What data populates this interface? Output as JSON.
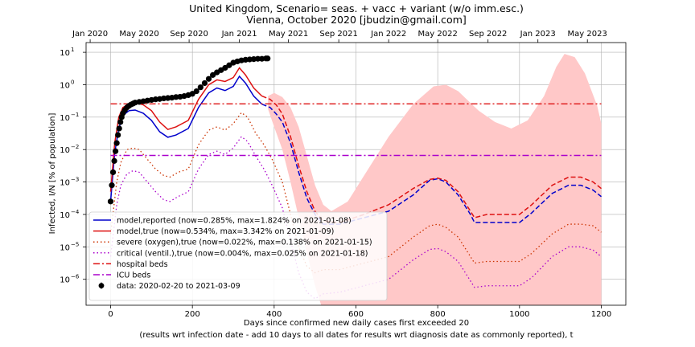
{
  "chart_data": {
    "type": "line",
    "title_line1": "United Kingdom, Scenario= seas. + vacc + variant (w/o imm.esc.)",
    "title_line2": "Vienna, October 2020 [jbudzin@gmail.com]",
    "xlabel": "Days since confirmed new daily cases first exceeded 20",
    "xlabel2": "(results wrt infection date - add 10 days to all dates for results wrt diagnosis date as commonly reported), t",
    "ylabel": "Infected, I/N [% of population]",
    "xlim": [
      -60,
      1260
    ],
    "ylim_log10": [
      -6.8,
      1.3
    ],
    "x_ticks": [
      0,
      200,
      400,
      600,
      800,
      1000,
      1200
    ],
    "x_tick_labels": [
      "0",
      "200",
      "400",
      "600",
      "800",
      "1000",
      "1200"
    ],
    "y_ticks_log10": [
      -6,
      -5,
      -4,
      -3,
      -2,
      -1,
      0,
      1
    ],
    "top_axis": {
      "tick_days": [
        -50,
        70,
        192,
        315,
        435,
        558,
        680,
        800,
        923,
        1045,
        1166
      ],
      "tick_labels": [
        "Jan 2020",
        "May 2020",
        "Sep 2020",
        "Jan 2021",
        "May 2021",
        "Sep 2021",
        "Jan 2022",
        "May 2022",
        "Sep 2022",
        "Jan 2023",
        "May 2023"
      ]
    },
    "grid": true,
    "legend_position": "lower-left",
    "series": [
      {
        "name": "model,reported (now=0.285%, max=1.824% on 2021-01-08)",
        "color": "#0000cc",
        "dash": "solid",
        "points": [
          [
            0,
            -3.6
          ],
          [
            10,
            -2.1
          ],
          [
            20,
            -1.35
          ],
          [
            30,
            -0.95
          ],
          [
            45,
            -0.8
          ],
          [
            60,
            -0.78
          ],
          [
            80,
            -0.88
          ],
          [
            100,
            -1.1
          ],
          [
            120,
            -1.45
          ],
          [
            140,
            -1.62
          ],
          [
            160,
            -1.55
          ],
          [
            190,
            -1.35
          ],
          [
            215,
            -0.7
          ],
          [
            240,
            -0.25
          ],
          [
            260,
            -0.1
          ],
          [
            280,
            -0.18
          ],
          [
            300,
            -0.05
          ],
          [
            315,
            0.26
          ],
          [
            330,
            0.05
          ],
          [
            350,
            -0.35
          ],
          [
            370,
            -0.6
          ],
          [
            390,
            -0.7
          ],
          [
            405,
            -0.9
          ],
          [
            420,
            -1.15
          ],
          [
            440,
            -1.8
          ],
          [
            460,
            -2.7
          ],
          [
            480,
            -3.5
          ],
          [
            500,
            -4.0
          ],
          [
            520,
            -4.3
          ],
          [
            560,
            -4.3
          ],
          [
            620,
            -4.1
          ],
          [
            680,
            -3.9
          ],
          [
            740,
            -3.4
          ],
          [
            780,
            -2.95
          ],
          [
            800,
            -2.9
          ],
          [
            820,
            -3.0
          ],
          [
            850,
            -3.4
          ],
          [
            880,
            -4.0
          ],
          [
            890,
            -4.25
          ],
          [
            920,
            -4.25
          ],
          [
            1000,
            -4.25
          ],
          [
            1030,
            -3.95
          ],
          [
            1080,
            -3.35
          ],
          [
            1120,
            -3.1
          ],
          [
            1150,
            -3.1
          ],
          [
            1180,
            -3.25
          ],
          [
            1200,
            -3.45
          ]
        ]
      },
      {
        "name": "model,true (now=0.534%, max=3.342% on 2021-01-09)",
        "color": "#dd1111",
        "dash": "solid",
        "points": [
          [
            0,
            -3.3
          ],
          [
            10,
            -1.8
          ],
          [
            20,
            -1.0
          ],
          [
            30,
            -0.7
          ],
          [
            45,
            -0.6
          ],
          [
            60,
            -0.55
          ],
          [
            80,
            -0.62
          ],
          [
            100,
            -0.8
          ],
          [
            120,
            -1.15
          ],
          [
            140,
            -1.38
          ],
          [
            160,
            -1.3
          ],
          [
            190,
            -1.1
          ],
          [
            215,
            -0.45
          ],
          [
            240,
            0.0
          ],
          [
            260,
            0.15
          ],
          [
            280,
            0.1
          ],
          [
            300,
            0.22
          ],
          [
            315,
            0.52
          ],
          [
            330,
            0.3
          ],
          [
            350,
            -0.1
          ],
          [
            370,
            -0.35
          ],
          [
            390,
            -0.45
          ],
          [
            405,
            -0.62
          ],
          [
            420,
            -0.9
          ],
          [
            440,
            -1.6
          ],
          [
            460,
            -2.5
          ],
          [
            480,
            -3.3
          ],
          [
            500,
            -3.9
          ],
          [
            520,
            -4.2
          ],
          [
            560,
            -4.25
          ],
          [
            620,
            -4.0
          ],
          [
            680,
            -3.7
          ],
          [
            740,
            -3.2
          ],
          [
            780,
            -2.92
          ],
          [
            800,
            -2.88
          ],
          [
            820,
            -2.95
          ],
          [
            850,
            -3.3
          ],
          [
            880,
            -3.9
          ],
          [
            890,
            -4.1
          ],
          [
            920,
            -4.0
          ],
          [
            1000,
            -4.0
          ],
          [
            1030,
            -3.7
          ],
          [
            1080,
            -3.1
          ],
          [
            1120,
            -2.85
          ],
          [
            1150,
            -2.85
          ],
          [
            1180,
            -3.0
          ],
          [
            1200,
            -3.2
          ]
        ]
      },
      {
        "name": "severe (oxygen),true (now=0.022%, max=0.138% on 2021-01-15)",
        "color": "#cc3300",
        "dash": "dotted",
        "points": [
          [
            0,
            -4.6
          ],
          [
            15,
            -3.0
          ],
          [
            25,
            -2.4
          ],
          [
            40,
            -2.0
          ],
          [
            55,
            -1.95
          ],
          [
            70,
            -2.0
          ],
          [
            90,
            -2.3
          ],
          [
            110,
            -2.6
          ],
          [
            130,
            -2.8
          ],
          [
            145,
            -2.85
          ],
          [
            165,
            -2.7
          ],
          [
            190,
            -2.6
          ],
          [
            215,
            -1.85
          ],
          [
            240,
            -1.4
          ],
          [
            260,
            -1.3
          ],
          [
            280,
            -1.4
          ],
          [
            300,
            -1.2
          ],
          [
            320,
            -0.86
          ],
          [
            335,
            -1.0
          ],
          [
            355,
            -1.5
          ],
          [
            375,
            -1.85
          ],
          [
            395,
            -2.3
          ],
          [
            420,
            -3.0
          ],
          [
            440,
            -4.0
          ],
          [
            460,
            -5.0
          ],
          [
            480,
            -5.6
          ],
          [
            500,
            -5.8
          ],
          [
            520,
            -5.7
          ],
          [
            560,
            -5.7
          ],
          [
            620,
            -5.5
          ],
          [
            680,
            -5.3
          ],
          [
            740,
            -4.7
          ],
          [
            780,
            -4.35
          ],
          [
            800,
            -4.3
          ],
          [
            820,
            -4.4
          ],
          [
            850,
            -4.7
          ],
          [
            880,
            -5.3
          ],
          [
            890,
            -5.5
          ],
          [
            920,
            -5.45
          ],
          [
            1000,
            -5.45
          ],
          [
            1030,
            -5.2
          ],
          [
            1080,
            -4.6
          ],
          [
            1120,
            -4.3
          ],
          [
            1150,
            -4.3
          ],
          [
            1180,
            -4.35
          ],
          [
            1200,
            -4.55
          ]
        ]
      },
      {
        "name": "critical (ventil.),true (now=0.004%, max=0.025% on 2021-01-18)",
        "color": "#aa00cc",
        "dash": "dotted",
        "points": [
          [
            0,
            -5.3
          ],
          [
            15,
            -3.7
          ],
          [
            25,
            -3.1
          ],
          [
            40,
            -2.75
          ],
          [
            55,
            -2.65
          ],
          [
            70,
            -2.7
          ],
          [
            90,
            -3.0
          ],
          [
            110,
            -3.3
          ],
          [
            130,
            -3.55
          ],
          [
            145,
            -3.6
          ],
          [
            165,
            -3.45
          ],
          [
            190,
            -3.3
          ],
          [
            215,
            -2.6
          ],
          [
            240,
            -2.15
          ],
          [
            260,
            -2.05
          ],
          [
            280,
            -2.15
          ],
          [
            300,
            -1.95
          ],
          [
            320,
            -1.6
          ],
          [
            335,
            -1.75
          ],
          [
            355,
            -2.2
          ],
          [
            375,
            -2.6
          ],
          [
            395,
            -3.1
          ],
          [
            420,
            -3.8
          ],
          [
            440,
            -4.8
          ],
          [
            460,
            -5.8
          ],
          [
            480,
            -6.4
          ],
          [
            500,
            -6.6
          ],
          [
            520,
            -6.45
          ],
          [
            560,
            -6.4
          ],
          [
            620,
            -6.2
          ],
          [
            680,
            -6.0
          ],
          [
            740,
            -5.4
          ],
          [
            780,
            -5.08
          ],
          [
            800,
            -5.05
          ],
          [
            820,
            -5.15
          ],
          [
            850,
            -5.45
          ],
          [
            880,
            -6.05
          ],
          [
            890,
            -6.25
          ],
          [
            920,
            -6.2
          ],
          [
            1000,
            -6.2
          ],
          [
            1030,
            -5.95
          ],
          [
            1080,
            -5.3
          ],
          [
            1120,
            -5.0
          ],
          [
            1150,
            -5.0
          ],
          [
            1180,
            -5.1
          ],
          [
            1200,
            -5.3
          ]
        ]
      },
      {
        "name": "hospital beds",
        "color": "#dd1111",
        "dash": "dashdot",
        "points": [
          [
            0,
            -0.59
          ],
          [
            1200,
            -0.59
          ]
        ]
      },
      {
        "name": "ICU beds",
        "color": "#aa00cc",
        "dash": "dashdot",
        "points": [
          [
            0,
            -2.18
          ],
          [
            1200,
            -2.18
          ]
        ]
      }
    ],
    "projection_dashed": {
      "blue_from_day": 385,
      "red_from_day": 385
    },
    "uncertainty_band": {
      "color": "#ffc8c8",
      "upper": [
        [
          385,
          -0.35
        ],
        [
          400,
          -0.25
        ],
        [
          420,
          -0.38
        ],
        [
          440,
          -0.7
        ],
        [
          460,
          -1.3
        ],
        [
          480,
          -2.2
        ],
        [
          500,
          -3.1
        ],
        [
          520,
          -3.7
        ],
        [
          540,
          -3.9
        ],
        [
          580,
          -3.6
        ],
        [
          620,
          -2.8
        ],
        [
          680,
          -1.6
        ],
        [
          740,
          -0.6
        ],
        [
          790,
          -0.05
        ],
        [
          820,
          0.0
        ],
        [
          850,
          -0.2
        ],
        [
          900,
          -0.8
        ],
        [
          940,
          -1.15
        ],
        [
          980,
          -1.35
        ],
        [
          1020,
          -1.1
        ],
        [
          1060,
          -0.35
        ],
        [
          1090,
          0.55
        ],
        [
          1110,
          0.95
        ],
        [
          1135,
          0.85
        ],
        [
          1160,
          0.35
        ],
        [
          1190,
          -0.65
        ],
        [
          1200,
          -1.2
        ]
      ],
      "lower": [
        [
          385,
          -0.75
        ],
        [
          400,
          -1.3
        ],
        [
          420,
          -2.0
        ],
        [
          440,
          -3.0
        ],
        [
          460,
          -4.1
        ],
        [
          480,
          -5.2
        ],
        [
          500,
          -6.2
        ],
        [
          515,
          -6.8
        ],
        [
          1200,
          -6.8
        ]
      ]
    },
    "observed_data": {
      "name": "data: 2020-02-20 to 2021-03-09",
      "color": "#000000",
      "points": [
        [
          0,
          -3.6
        ],
        [
          3,
          -3.1
        ],
        [
          6,
          -2.7
        ],
        [
          9,
          -2.35
        ],
        [
          12,
          -2.05
        ],
        [
          15,
          -1.8
        ],
        [
          18,
          -1.55
        ],
        [
          21,
          -1.35
        ],
        [
          24,
          -1.15
        ],
        [
          27,
          -1.0
        ],
        [
          30,
          -0.88
        ],
        [
          35,
          -0.78
        ],
        [
          40,
          -0.7
        ],
        [
          45,
          -0.65
        ],
        [
          50,
          -0.61
        ],
        [
          55,
          -0.58
        ],
        [
          60,
          -0.55
        ],
        [
          70,
          -0.53
        ],
        [
          80,
          -0.51
        ],
        [
          90,
          -0.49
        ],
        [
          100,
          -0.47
        ],
        [
          110,
          -0.45
        ],
        [
          120,
          -0.44
        ],
        [
          130,
          -0.42
        ],
        [
          140,
          -0.41
        ],
        [
          150,
          -0.4
        ],
        [
          160,
          -0.38
        ],
        [
          170,
          -0.37
        ],
        [
          180,
          -0.35
        ],
        [
          190,
          -0.32
        ],
        [
          200,
          -0.28
        ],
        [
          210,
          -0.2
        ],
        [
          220,
          -0.08
        ],
        [
          230,
          0.05
        ],
        [
          240,
          0.18
        ],
        [
          250,
          0.3
        ],
        [
          260,
          0.38
        ],
        [
          270,
          0.45
        ],
        [
          280,
          0.52
        ],
        [
          290,
          0.6
        ],
        [
          300,
          0.68
        ],
        [
          310,
          0.72
        ],
        [
          320,
          0.75
        ],
        [
          330,
          0.77
        ],
        [
          340,
          0.78
        ],
        [
          350,
          0.79
        ],
        [
          360,
          0.8
        ],
        [
          370,
          0.8
        ],
        [
          380,
          0.81
        ],
        [
          384,
          0.81
        ]
      ]
    }
  }
}
